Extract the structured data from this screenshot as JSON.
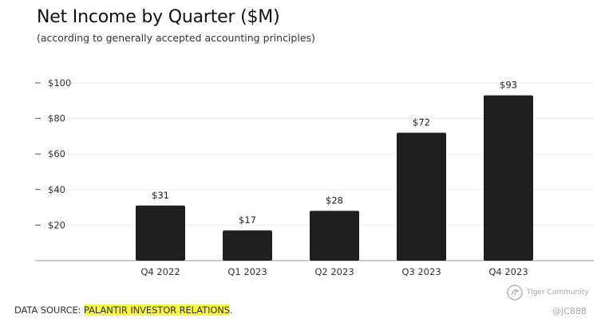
{
  "chart_data": {
    "type": "bar",
    "title": "Net Income by Quarter ($M)",
    "subtitle": "(according to generally accepted accounting principles)",
    "categories": [
      "Q4 2022",
      "Q1 2023",
      "Q2 2023",
      "Q3 2023",
      "Q4 2023"
    ],
    "values": [
      31,
      17,
      28,
      72,
      93
    ],
    "data_labels": [
      "$31",
      "$17",
      "$28",
      "$72",
      "$93"
    ],
    "ylim": [
      0,
      100
    ],
    "yticks": [
      20,
      40,
      60,
      80,
      100
    ],
    "ytick_labels": [
      "$20",
      "$40",
      "$60",
      "$80",
      "$100"
    ],
    "grid": true,
    "bar_color": "#1f1f1f"
  },
  "footer": {
    "prefix": "DATA SOURCE: ",
    "source": "PALANTIR INVESTOR RELATIONS",
    "suffix": ".",
    "highlight_color": "#f7f542"
  },
  "watermark": {
    "brand": "Tiger Community",
    "user": "@JC888"
  }
}
